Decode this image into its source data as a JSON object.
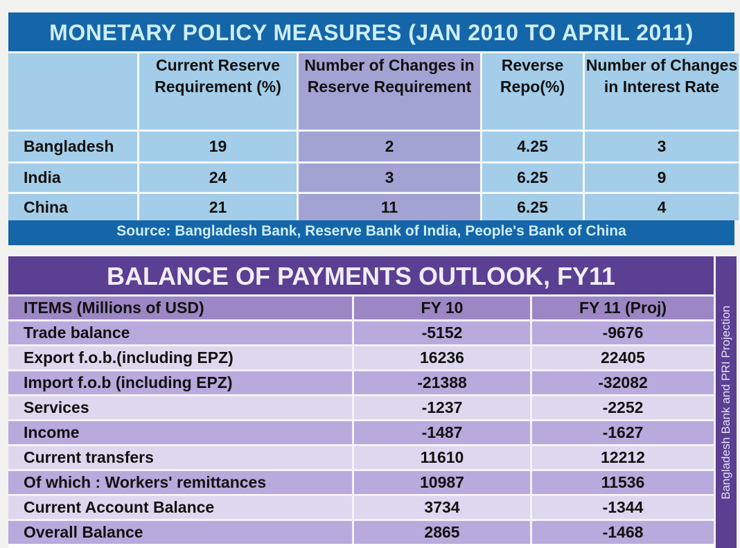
{
  "monetary": {
    "title": "MONETARY POLICY MEASURES (JAN 2010 TO APRIL 2011)",
    "headers": [
      "",
      "Current Reserve Requirement (%)",
      "Number of Changes in Reserve Requirement",
      "Reverse Repo(%)",
      "Number of Changes in Interest Rate"
    ],
    "rows": [
      [
        "Bangladesh",
        "19",
        "2",
        "4.25",
        "3"
      ],
      [
        "India",
        "24",
        "3",
        "6.25",
        "9"
      ],
      [
        "China",
        "21",
        "11",
        "6.25",
        "4"
      ]
    ],
    "source": "Source: Bangladesh Bank, Reserve Bank of India, People's Bank of China"
  },
  "bop": {
    "title": "BALANCE OF PAYMENTS OUTLOOK, FY11",
    "headers": [
      "ITEMS (Millions of USD)",
      "FY 10",
      "FY 11 (Proj)"
    ],
    "rows": [
      [
        "Trade balance",
        "-5152",
        "-9676"
      ],
      [
        "Export f.o.b.(including EPZ)",
        "16236",
        "22405"
      ],
      [
        "Import f.o.b (including EPZ)",
        "-21388",
        "-32082"
      ],
      [
        "Services",
        "-1237",
        "-2252"
      ],
      [
        "Income",
        "-1487",
        "-1627"
      ],
      [
        "Current transfers",
        "11610",
        "12212"
      ],
      [
        "Of which : Workers' remittances",
        "10987",
        "11536"
      ],
      [
        "Current Account Balance",
        "3734",
        "-1344"
      ],
      [
        "Overall Balance",
        "2865",
        "-1468"
      ]
    ],
    "side_note": "Bangladesh Bank and PRI Projection"
  }
}
